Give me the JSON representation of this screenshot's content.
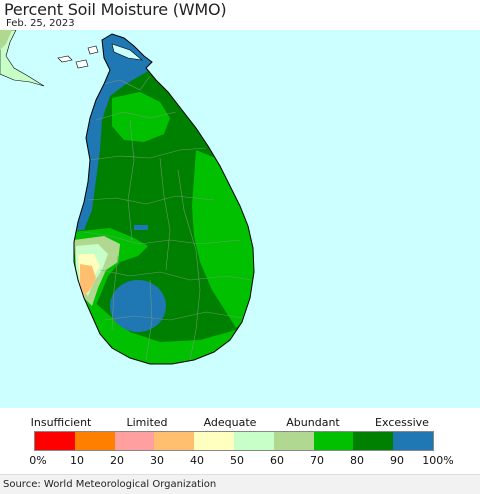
{
  "header": {
    "title": "Percent Soil Moisture (WMO)",
    "date": "Feb. 25, 2023"
  },
  "legend": {
    "categories": [
      "Insufficient",
      "Limited",
      "Adequate",
      "Abundant",
      "Excessive"
    ],
    "bins": [
      {
        "color": "#ff0000"
      },
      {
        "color": "#ff7f00"
      },
      {
        "color": "#ff9f9f"
      },
      {
        "color": "#ffbf6f"
      },
      {
        "color": "#ffffbf"
      },
      {
        "color": "#c8ffc8"
      },
      {
        "color": "#b0d890"
      },
      {
        "color": "#00c000"
      },
      {
        "color": "#008000"
      },
      {
        "color": "#1f78b4"
      }
    ],
    "ticks": [
      "0%",
      "10",
      "20",
      "30",
      "40",
      "50",
      "60",
      "70",
      "80",
      "90",
      "100%"
    ]
  },
  "source": "Source: World Meteorological Organization",
  "colors": {
    "ocean": "#ccffff",
    "land_neighbor": "#c8ffc8"
  }
}
